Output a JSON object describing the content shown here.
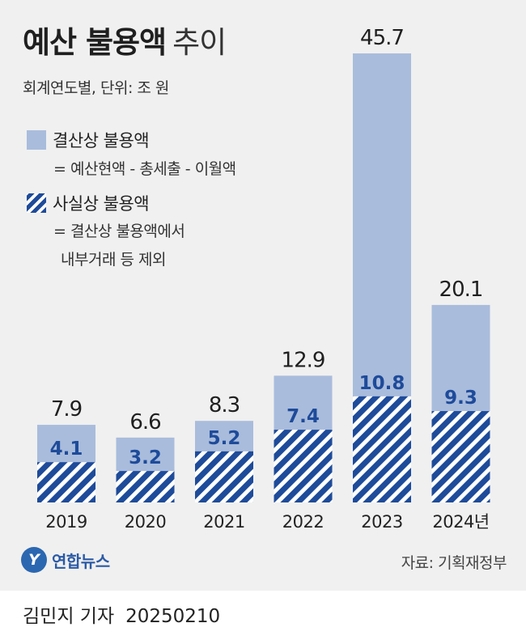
{
  "header": {
    "title_bold": "예산 불용액",
    "title_light": "추이",
    "subtitle": "회계연도별, 단위: 조 원"
  },
  "legend": [
    {
      "label": "결산상 불용액",
      "desc": [
        "= 예산현액 - 총세출 - 이월액"
      ],
      "style": "solid"
    },
    {
      "label": "사실상 불용액",
      "desc": [
        "= 결산상 불용액에서",
        "내부거래 등 제외"
      ],
      "style": "hatch"
    }
  ],
  "colors": {
    "total": "#a9bcdc",
    "hatch": "#1e4b9a",
    "panel": "#f0f0f0"
  },
  "chart_data": {
    "type": "bar",
    "categories": [
      "2019",
      "2020",
      "2021",
      "2022",
      "2023",
      "2024년"
    ],
    "series": [
      {
        "name": "결산상 불용액",
        "values": [
          7.9,
          6.6,
          8.3,
          12.9,
          45.7,
          20.1
        ]
      },
      {
        "name": "사실상 불용액",
        "values": [
          4.1,
          3.2,
          5.2,
          7.4,
          10.8,
          9.3
        ]
      }
    ],
    "xlabel": "",
    "ylabel": "",
    "ylim": [
      0,
      50
    ],
    "grid": false,
    "legend_position": "top-left"
  },
  "footer": {
    "logo_mark": "Y",
    "logo_text": "연합뉴스",
    "source": "자료: 기획재정부",
    "reporter": "김민지 기자",
    "date": "20250210"
  }
}
